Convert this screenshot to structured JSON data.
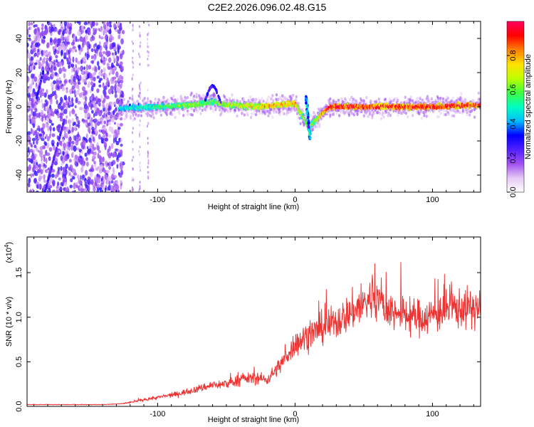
{
  "title": "C2E2.2026.096.02.48.G15",
  "chart_data": [
    {
      "type": "heatmap",
      "id": "spectrogram",
      "xlabel": "Height of straight line (km)",
      "ylabel": "Frequency (Hz)",
      "xlim": [
        -195,
        135
      ],
      "ylim": [
        -50,
        50
      ],
      "xticks": [
        -100,
        0,
        100
      ],
      "yticks": [
        -40,
        -20,
        0,
        20,
        40
      ],
      "xtick_labels": [
        "-100",
        "0",
        "100"
      ],
      "ytick_labels": [
        "-40",
        "-20",
        "0",
        "20",
        "40"
      ],
      "colorbar": {
        "label": "Normalized spectral amplitude",
        "range": [
          0,
          1
        ],
        "ticks": [
          0.0,
          0.2,
          0.4,
          0.6,
          0.8
        ],
        "tick_labels": [
          "0.0",
          "0.2",
          "0.4",
          "0.6",
          "0.8"
        ],
        "colors": [
          "#ffffff",
          "#e6c8f5",
          "#a050f0",
          "#5020ff",
          "#0000ff",
          "#00c0ff",
          "#00ffc0",
          "#40ff40",
          "#c0ff00",
          "#ffe000",
          "#ff8000",
          "#ff0000",
          "#ff0060"
        ]
      },
      "ridge_description": [
        {
          "x": -125,
          "freq": -1,
          "amp": 0.35
        },
        {
          "x": -100,
          "freq": 0,
          "amp": 0.45
        },
        {
          "x": -75,
          "freq": 1,
          "amp": 0.55
        },
        {
          "x": -60,
          "freq": 3,
          "amp": 0.5
        },
        {
          "x": -50,
          "freq": 1,
          "amp": 0.6
        },
        {
          "x": -25,
          "freq": 0,
          "amp": 0.7
        },
        {
          "x": 0,
          "freq": 2,
          "amp": 0.75
        },
        {
          "x": 10,
          "freq": -12,
          "amp": 0.45
        },
        {
          "x": 25,
          "freq": 0,
          "amp": 0.9
        },
        {
          "x": 60,
          "freq": 0,
          "amp": 0.85
        },
        {
          "x": 100,
          "freq": 0,
          "amp": 0.9
        },
        {
          "x": 130,
          "freq": 1,
          "amp": 0.85
        }
      ]
    },
    {
      "type": "line",
      "id": "snr",
      "xlabel": "Height of straight line (km)",
      "ylabel": "SNR (10 * v/v)",
      "scale_label": "(x10",
      "scale_exponent": "4",
      "scale_close": ")",
      "xlim": [
        -195,
        135
      ],
      "ylim": [
        0,
        1.9
      ],
      "xticks": [
        -100,
        0,
        100
      ],
      "yticks": [
        0.0,
        0.5,
        1.0,
        1.5
      ],
      "xtick_labels": [
        "-100",
        "0",
        "100"
      ],
      "ytick_labels": [
        "0.0",
        "0.5",
        "1.0",
        "1.5"
      ],
      "color": "#ee3333",
      "series": [
        {
          "name": "SNR",
          "x": [
            -195,
            -180,
            -160,
            -140,
            -125,
            -115,
            -100,
            -85,
            -70,
            -60,
            -50,
            -40,
            -30,
            -20,
            -10,
            0,
            10,
            20,
            30,
            40,
            50,
            58,
            65,
            75,
            85,
            95,
            105,
            115,
            125,
            135
          ],
          "y": [
            0.02,
            0.02,
            0.02,
            0.02,
            0.03,
            0.06,
            0.1,
            0.14,
            0.2,
            0.24,
            0.25,
            0.3,
            0.32,
            0.3,
            0.48,
            0.7,
            0.8,
            0.88,
            0.95,
            1.05,
            1.15,
            1.25,
            1.1,
            1.05,
            1.0,
            1.0,
            1.05,
            1.1,
            1.1,
            1.1
          ]
        }
      ]
    }
  ]
}
